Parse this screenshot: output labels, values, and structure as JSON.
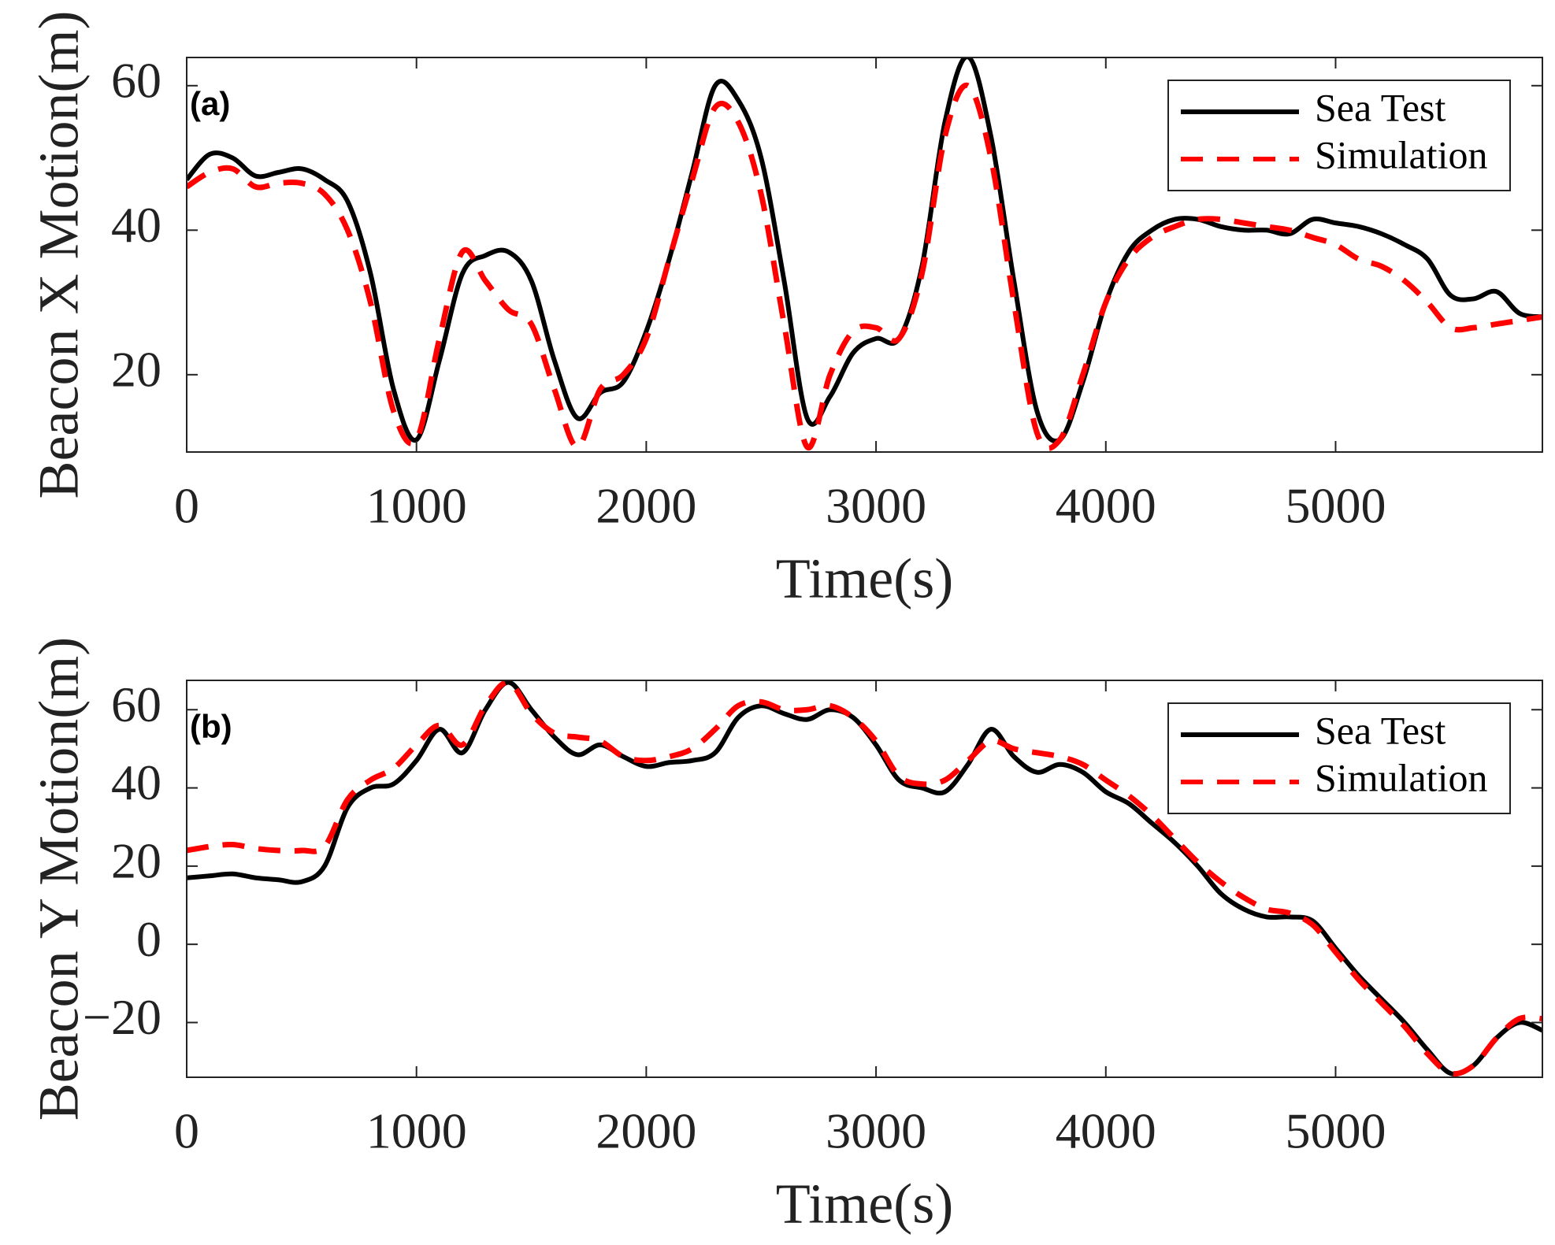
{
  "chart_data": [
    {
      "type": "line",
      "annotation": "(a)",
      "xlabel": "Time(s)",
      "ylabel": "Beacon X Motion(m)",
      "x": [
        0,
        100,
        200,
        300,
        400,
        500,
        600,
        700,
        800,
        900,
        1000,
        1100,
        1200,
        1300,
        1400,
        1500,
        1600,
        1700,
        1800,
        1900,
        2000,
        2100,
        2200,
        2300,
        2400,
        2500,
        2600,
        2700,
        2800,
        2900,
        3000,
        3100,
        3200,
        3300,
        3400,
        3500,
        3600,
        3700,
        3800,
        3900,
        4000,
        4100,
        4200,
        4300,
        4400,
        4500,
        4600,
        4700,
        4800,
        4900,
        5000,
        5100,
        5200,
        5300,
        5400,
        5500,
        5600,
        5700,
        5800,
        5900
      ],
      "series": [
        {
          "name": "Sea Test",
          "color": "#000000",
          "dash": "solid",
          "values": [
            47,
            50.5,
            50,
            47.5,
            48,
            48.5,
            47,
            44,
            34,
            18,
            11,
            22,
            34,
            36.5,
            37,
            33,
            22,
            14,
            17.5,
            19,
            26,
            36,
            48,
            60,
            58,
            50,
            33,
            14,
            17,
            23,
            25,
            25,
            35,
            55,
            64,
            53,
            33,
            15,
            11,
            19,
            30,
            37,
            40,
            41.5,
            41.5,
            40.5,
            40,
            40,
            39.5,
            41.5,
            41,
            40.5,
            39.5,
            38,
            36,
            31,
            30.5,
            31.5,
            28.5,
            28
          ]
        },
        {
          "name": "Simulation",
          "color": "#ff0000",
          "dash": "dashed",
          "values": [
            46,
            48,
            48.5,
            46,
            46.5,
            46.5,
            45,
            40,
            30,
            15,
            11,
            25,
            37,
            33,
            29,
            27,
            18,
            10,
            18,
            20,
            25,
            36,
            47,
            57,
            55,
            45,
            27,
            10,
            20,
            26,
            26.5,
            25,
            34,
            53,
            60,
            50,
            30,
            12,
            11,
            20,
            30,
            36,
            39,
            40.5,
            41.5,
            41.5,
            41,
            40.5,
            40,
            39,
            38,
            36,
            35,
            33,
            30,
            26.5,
            26.5,
            27,
            27.5,
            28
          ]
        }
      ],
      "xlim": [
        0,
        5900
      ],
      "xticks": [
        0,
        1000,
        2000,
        3000,
        4000,
        5000
      ],
      "ylim": [
        9.3,
        63.9
      ],
      "yticks": [
        20,
        40,
        60
      ],
      "grid": false,
      "legend": "upper right"
    },
    {
      "type": "line",
      "annotation": "(b)",
      "xlabel": "Time(s)",
      "ylabel": "Beacon Y Motion(m)",
      "x": [
        0,
        100,
        200,
        300,
        400,
        500,
        600,
        700,
        800,
        900,
        1000,
        1100,
        1200,
        1300,
        1400,
        1500,
        1600,
        1700,
        1800,
        1900,
        2000,
        2100,
        2200,
        2300,
        2400,
        2500,
        2600,
        2700,
        2800,
        2900,
        3000,
        3100,
        3200,
        3300,
        3400,
        3500,
        3600,
        3700,
        3800,
        3900,
        4000,
        4100,
        4200,
        4300,
        4400,
        4500,
        4600,
        4700,
        4800,
        4900,
        5000,
        5100,
        5200,
        5300,
        5400,
        5500,
        5600,
        5700,
        5800,
        5900
      ],
      "series": [
        {
          "name": "Sea Test",
          "color": "#000000",
          "dash": "solid",
          "values": [
            17,
            17.5,
            18,
            17,
            16.5,
            16,
            20,
            35,
            40,
            41,
            47,
            55,
            49,
            60,
            67,
            60,
            53,
            48.5,
            51,
            48,
            45.5,
            46.5,
            47,
            49,
            58,
            61,
            59,
            57.5,
            60,
            58,
            51,
            42,
            40,
            39,
            46,
            55,
            48,
            44,
            46,
            44,
            39,
            36,
            31,
            26,
            20,
            13,
            9,
            7,
            7,
            6,
            -1,
            -8,
            -14,
            -20,
            -27,
            -33,
            -31,
            -24,
            -20,
            -22
          ]
        },
        {
          "name": "Simulation",
          "color": "#ff0000",
          "dash": "dashed",
          "values": [
            24,
            25,
            25.5,
            24.5,
            24,
            24,
            25,
            37,
            42,
            45,
            51,
            56,
            51,
            61,
            67,
            59,
            54,
            53,
            52,
            48,
            47,
            48,
            50,
            55,
            61,
            62,
            60,
            60,
            61,
            58,
            52,
            43,
            41,
            42,
            47,
            52,
            50,
            49,
            48,
            46,
            42,
            38,
            33,
            27,
            21,
            16,
            12,
            9,
            8,
            5,
            -2,
            -9,
            -15,
            -21,
            -28,
            -33,
            -31,
            -24,
            -19,
            -19
          ]
        }
      ],
      "xlim": [
        0,
        5900
      ],
      "xticks": [
        0,
        1000,
        2000,
        3000,
        4000,
        5000
      ],
      "ylim": [
        -34,
        67.5
      ],
      "yticks": [
        {
          "value": -20,
          "label": "−20"
        },
        0,
        20,
        40,
        60
      ],
      "grid": false,
      "legend": "upper right"
    }
  ]
}
